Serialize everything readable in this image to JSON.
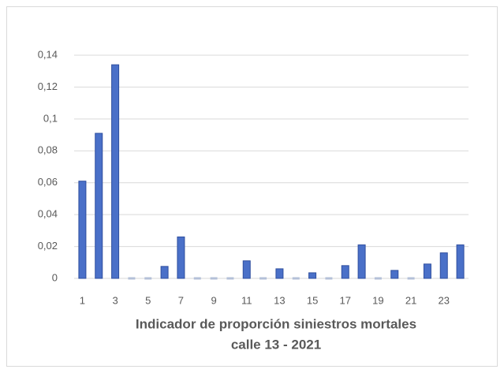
{
  "chart_data": {
    "type": "bar",
    "title": [
      "Indicador de proporción siniestros mortales",
      "calle 13 - 2021"
    ],
    "categories": [
      "1",
      null,
      "3",
      null,
      "5",
      null,
      "7",
      null,
      "9",
      null,
      "11",
      null,
      "13",
      null,
      "15",
      null,
      "17",
      null,
      "19",
      null,
      "21",
      null,
      "23",
      null
    ],
    "values": [
      0.061,
      0.091,
      0.134,
      0,
      0,
      0.0075,
      0.026,
      0,
      0,
      0,
      0.011,
      0,
      0.006,
      0,
      0.0035,
      0,
      0.008,
      0.021,
      0,
      0.005,
      0,
      0.009,
      0.016,
      0.021
    ],
    "color": "#4a70c8",
    "ylim": [
      0,
      0.14
    ],
    "yticks": [
      0,
      {
        "value": 0.02,
        "label": "0,02"
      },
      {
        "value": 0.04,
        "label": "0,04"
      },
      {
        "value": 0.06,
        "label": "0,06"
      },
      {
        "value": 0.08,
        "label": "0,08"
      },
      {
        "value": 0.1,
        "label": "0,1"
      },
      {
        "value": 0.12,
        "label": "0,12"
      },
      {
        "value": 0.14,
        "label": "0,14"
      }
    ],
    "grid": true
  }
}
